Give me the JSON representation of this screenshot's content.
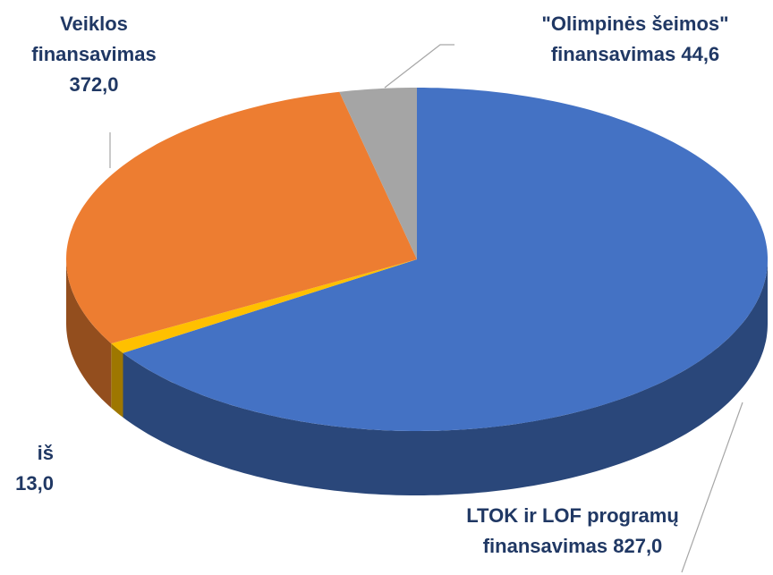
{
  "chart_data": {
    "type": "pie3d",
    "categories": [
      "LTOK ir LOF programų finansavimas",
      "iš",
      "Veiklos finansavimas",
      "\"Olimpinės šeimos\" finansavimas"
    ],
    "values": [
      827,
      13,
      372,
      44.6
    ],
    "value_labels": [
      "827,0",
      "13,0",
      "372,0",
      "44,6"
    ],
    "colors": [
      "#4472c4",
      "#ffc000",
      "#ed7d31",
      "#a5a5a5"
    ]
  }
}
